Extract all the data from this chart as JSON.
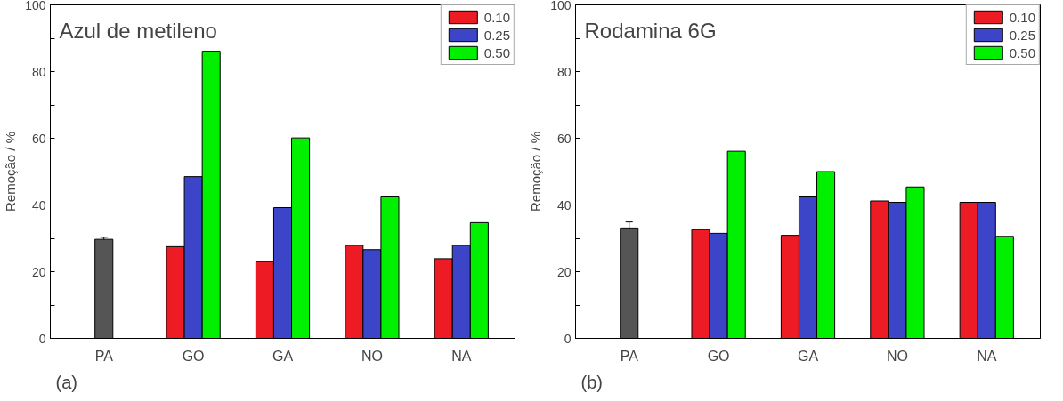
{
  "chart_data": [
    {
      "type": "bar",
      "title": "Azul de metileno",
      "ylabel": "Remoção / %",
      "categories": [
        "PA",
        "GO",
        "GA",
        "NO",
        "NA"
      ],
      "ylim": [
        0,
        100
      ],
      "yticks": [
        0,
        {
          "value": 10,
          "label": null
        },
        20,
        {
          "value": 30,
          "label": null
        },
        40,
        {
          "value": 50,
          "label": null
        },
        60,
        {
          "value": 70,
          "label": null
        },
        80,
        {
          "value": 90,
          "label": null
        },
        100
      ],
      "grid": false,
      "legend": "top right",
      "annotations": [
        "(a)"
      ],
      "series": [
        {
          "color": "#555555",
          "values": [
            29.7,
            null,
            null,
            null,
            null
          ],
          "errors": [
            0.6,
            null,
            null,
            null,
            null
          ]
        },
        {
          "name": "0.10",
          "color": "#ed1c24",
          "values": [
            null,
            27.5,
            23.0,
            27.9,
            23.9
          ]
        },
        {
          "name": "0.25",
          "color": "#3c44c8",
          "values": [
            null,
            48.5,
            39.2,
            26.6,
            27.9
          ]
        },
        {
          "name": "0.50",
          "color": "#00f000",
          "values": [
            null,
            86.1,
            60.1,
            42.4,
            34.7
          ]
        }
      ]
    },
    {
      "type": "bar",
      "title": "Rodamina 6G",
      "ylabel": "Remoção / %",
      "categories": [
        "PA",
        "GO",
        "GA",
        "NO",
        "NA"
      ],
      "ylim": [
        0,
        100
      ],
      "yticks": [
        0,
        {
          "value": 10,
          "label": null
        },
        20,
        {
          "value": 30,
          "label": null
        },
        40,
        {
          "value": 50,
          "label": null
        },
        60,
        {
          "value": 70,
          "label": null
        },
        80,
        {
          "value": 90,
          "label": null
        },
        100
      ],
      "grid": false,
      "legend": "top right",
      "annotations": [
        "(b)"
      ],
      "series": [
        {
          "color": "#555555",
          "values": [
            33.1,
            null,
            null,
            null,
            null
          ],
          "errors": [
            1.8,
            null,
            null,
            null,
            null
          ]
        },
        {
          "name": "0.10",
          "color": "#ed1c24",
          "values": [
            null,
            32.6,
            30.9,
            41.2,
            40.8
          ]
        },
        {
          "name": "0.25",
          "color": "#3c44c8",
          "values": [
            null,
            31.5,
            42.4,
            40.8,
            40.8
          ]
        },
        {
          "name": "0.50",
          "color": "#00f000",
          "values": [
            null,
            56.1,
            50.0,
            45.4,
            30.6
          ]
        }
      ]
    }
  ]
}
